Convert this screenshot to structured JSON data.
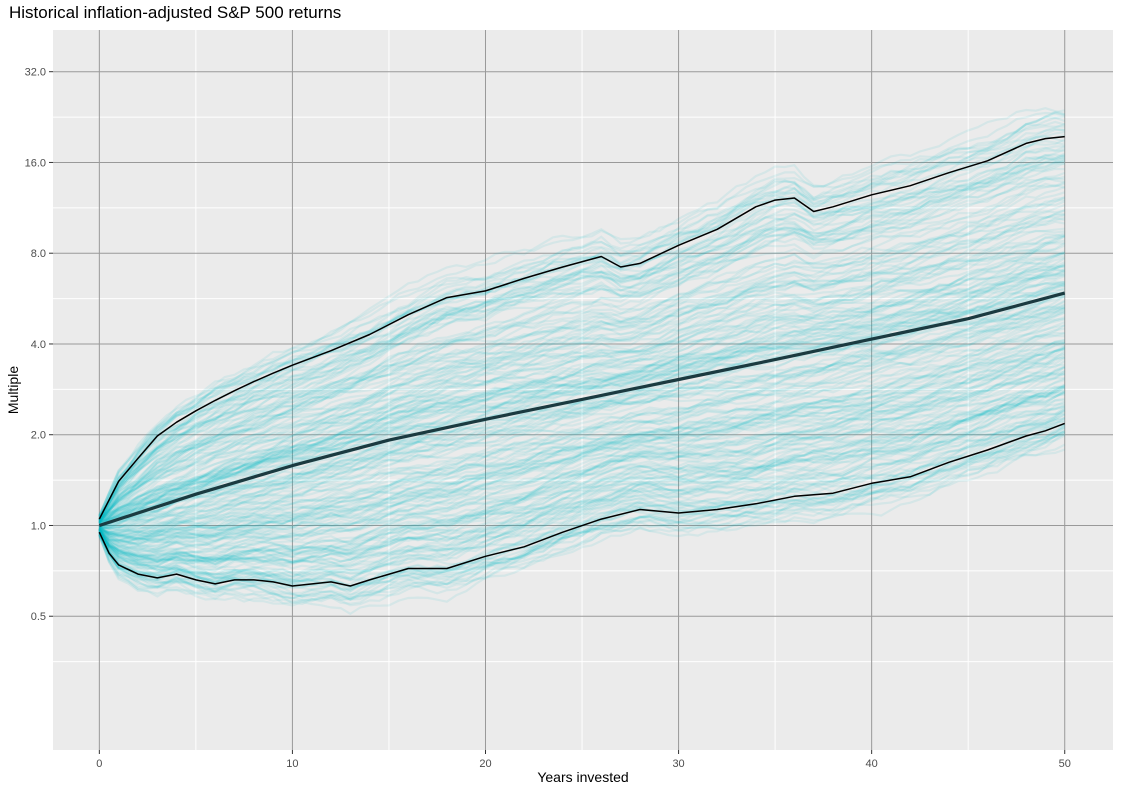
{
  "chart_data": {
    "type": "line",
    "title": "Historical inflation-adjusted S&P 500 returns",
    "xlabel": "Years invested",
    "ylabel": "Multiple",
    "y_scale": "log2",
    "xlim": [
      -2.4,
      52.5
    ],
    "ylim": [
      0.18,
      44
    ],
    "x_ticks": [
      0,
      10,
      20,
      30,
      40,
      50
    ],
    "x_tick_labels": [
      "0",
      "10",
      "20",
      "30",
      "40",
      "50"
    ],
    "y_ticks": [
      0.5,
      1.0,
      2.0,
      4.0,
      8.0,
      16.0,
      32.0
    ],
    "y_tick_labels": [
      "0.5",
      "1.0",
      "2.0",
      "4.0",
      "8.0",
      "16.0",
      "32.0"
    ],
    "grid": true,
    "colors": {
      "panel_background": "#ebebeb",
      "grid_major": "#999999",
      "grid_minor": "#ffffff",
      "paths": "#00bec8",
      "summary_lines": "#000000",
      "median_line": "#1b3a40"
    },
    "series": [
      {
        "name": "",
        "x": [
          0,
          1,
          2,
          3,
          4,
          5,
          6,
          7,
          8,
          9,
          10,
          12,
          14,
          16,
          18,
          20,
          22,
          24,
          26,
          27,
          28,
          30,
          32,
          34,
          35,
          36,
          37,
          38,
          40,
          42,
          44,
          46,
          48,
          49,
          50
        ],
        "y": [
          1.05,
          1.4,
          1.67,
          1.98,
          2.2,
          2.4,
          2.6,
          2.8,
          3.0,
          3.2,
          3.4,
          3.8,
          4.3,
          5.0,
          5.7,
          6.0,
          6.6,
          7.2,
          7.8,
          7.2,
          7.4,
          8.5,
          9.6,
          11.4,
          12.0,
          12.2,
          11.0,
          11.4,
          12.5,
          13.4,
          14.8,
          16.2,
          18.5,
          19.2,
          19.5
        ]
      },
      {
        "name": "",
        "x": [
          0,
          0.5,
          1,
          2,
          3,
          4,
          5,
          6,
          7,
          8,
          9,
          10,
          12,
          13,
          14,
          16,
          18,
          20,
          22,
          24,
          26,
          28,
          30,
          32,
          34,
          36,
          38,
          40,
          42,
          44,
          46,
          48,
          49,
          50
        ],
        "y": [
          0.95,
          0.81,
          0.74,
          0.69,
          0.67,
          0.69,
          0.66,
          0.64,
          0.66,
          0.66,
          0.65,
          0.63,
          0.65,
          0.63,
          0.66,
          0.72,
          0.72,
          0.79,
          0.85,
          0.95,
          1.05,
          1.13,
          1.1,
          1.13,
          1.18,
          1.25,
          1.28,
          1.38,
          1.45,
          1.62,
          1.78,
          1.98,
          2.06,
          2.18
        ]
      },
      {
        "name": "",
        "x": [
          0,
          5,
          10,
          15,
          20,
          25,
          30,
          35,
          40,
          45,
          50
        ],
        "y": [
          1.0,
          1.27,
          1.58,
          1.92,
          2.25,
          2.62,
          3.05,
          3.55,
          4.15,
          4.85,
          5.9
        ]
      }
    ]
  }
}
